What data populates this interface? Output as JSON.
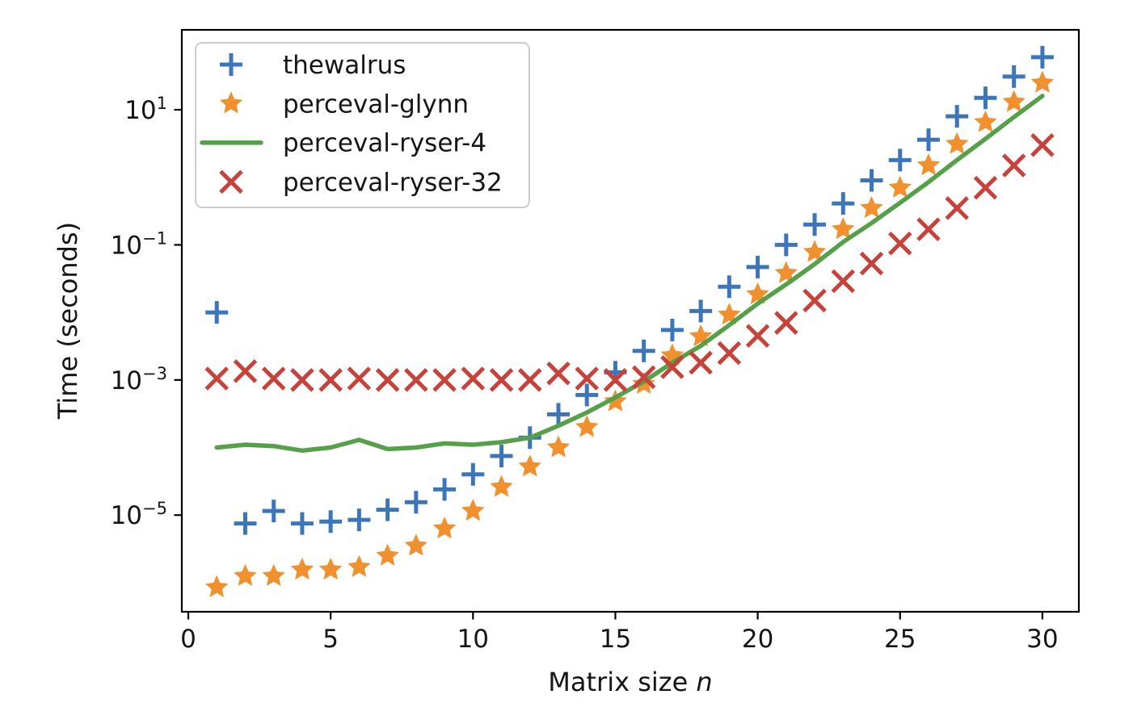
{
  "figure": {
    "background": "#ffffff",
    "text_color": "#151515",
    "frame_color": "#000000",
    "legend_border_color": "#cccccc"
  },
  "labels": {
    "xlabel_prefix": "Matrix size ",
    "xlabel_var": "n",
    "ylabel": "Time (seconds)"
  },
  "chart_data": {
    "type": "line",
    "title": "",
    "xlabel": "Matrix size n",
    "ylabel": "Time (seconds)",
    "yscale": "log",
    "grid": false,
    "legend_position": "upper left",
    "xlim": [
      -0.25,
      31.3
    ],
    "ylim": [
      3.7e-07,
      150
    ],
    "xticks": [
      0,
      5,
      10,
      15,
      20,
      25,
      30
    ],
    "ytick_exponents": [
      1,
      -1,
      -3,
      -5
    ],
    "x": [
      1,
      2,
      3,
      4,
      5,
      6,
      7,
      8,
      9,
      10,
      11,
      12,
      13,
      14,
      15,
      16,
      17,
      18,
      19,
      20,
      21,
      22,
      23,
      24,
      25,
      26,
      27,
      28,
      29,
      30
    ],
    "series": [
      {
        "name": "thewalrus",
        "marker": "plus",
        "color": "#3d76b8",
        "values": [
          0.01,
          7.5e-06,
          1.15e-05,
          7.5e-06,
          8e-06,
          8.5e-06,
          1.2e-05,
          1.55e-05,
          2.4e-05,
          4e-05,
          7.5e-05,
          0.00014,
          0.00031,
          0.0006,
          0.0013,
          0.0027,
          0.0055,
          0.0105,
          0.024,
          0.047,
          0.1,
          0.2,
          0.41,
          0.9,
          1.8,
          3.6,
          8.0,
          15,
          31,
          60
        ]
      },
      {
        "name": "perceval-glynn",
        "marker": "star",
        "color": "#f0902f",
        "values": [
          8.5e-07,
          1.25e-06,
          1.25e-06,
          1.55e-06,
          1.55e-06,
          1.7e-06,
          2.5e-06,
          3.5e-06,
          6.3e-06,
          1.15e-05,
          2.6e-05,
          5.2e-05,
          0.0001,
          0.0002,
          0.00048,
          0.00087,
          0.0023,
          0.0044,
          0.0092,
          0.0185,
          0.038,
          0.078,
          0.17,
          0.35,
          0.7,
          1.5,
          3.1,
          6.5,
          13,
          25
        ]
      },
      {
        "name": "perceval-ryser-4",
        "marker": "line",
        "color": "#55a049",
        "values": [
          0.0001,
          0.00011,
          0.000105,
          9e-05,
          0.0001,
          0.00013,
          9.5e-05,
          0.0001,
          0.000115,
          0.00011,
          0.00012,
          0.00014,
          0.00021,
          0.00033,
          0.00055,
          0.00095,
          0.0018,
          0.0032,
          0.0065,
          0.0135,
          0.026,
          0.052,
          0.11,
          0.21,
          0.42,
          0.85,
          1.8,
          3.7,
          7.8,
          16
        ]
      },
      {
        "name": "perceval-ryser-32",
        "marker": "x",
        "color": "#c7423a",
        "values": [
          0.00105,
          0.00135,
          0.00105,
          0.001,
          0.001,
          0.00105,
          0.001,
          0.001,
          0.001,
          0.00105,
          0.001,
          0.001,
          0.00125,
          0.00105,
          0.001,
          0.0011,
          0.00155,
          0.0018,
          0.0025,
          0.0045,
          0.007,
          0.015,
          0.029,
          0.053,
          0.105,
          0.17,
          0.35,
          0.7,
          1.5,
          3.0
        ]
      }
    ]
  }
}
